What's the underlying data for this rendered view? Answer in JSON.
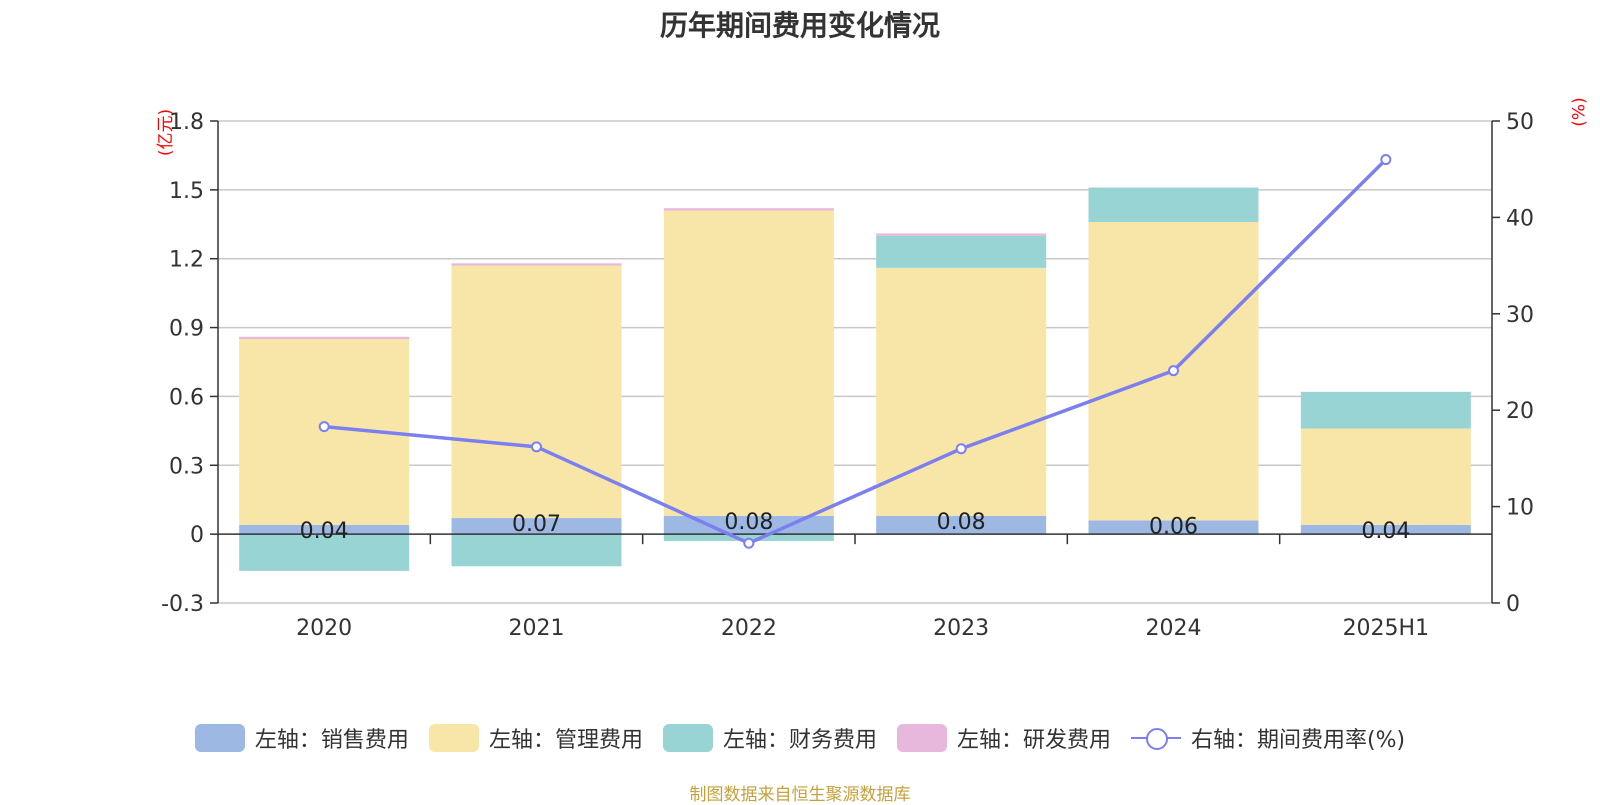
{
  "chart_data": {
    "type": "bar",
    "title": "历年期间费用变化情况",
    "left_unit": "(亿元)",
    "right_unit": "(%)",
    "categories": [
      "2020",
      "2021",
      "2022",
      "2023",
      "2024",
      "2025H1"
    ],
    "left_axis": {
      "ylim": [
        -0.3,
        1.8
      ],
      "ticks": [
        "-0.3",
        "0",
        "0.3",
        "0.6",
        "0.9",
        "1.2",
        "1.5",
        "1.8"
      ]
    },
    "right_axis": {
      "ylim": [
        0,
        50
      ],
      "ticks": [
        "0",
        "10",
        "20",
        "30",
        "40",
        "50"
      ]
    },
    "grid": true,
    "legend_position": "bottom",
    "series": [
      {
        "name": "左轴：销售费用",
        "type": "bar",
        "axis": "left",
        "color": "#9db8e3",
        "values": [
          0.04,
          0.07,
          0.08,
          0.08,
          0.06,
          0.04
        ],
        "labels": [
          "0.04",
          "0.07",
          "0.08",
          "0.08",
          "0.06",
          "0.04"
        ]
      },
      {
        "name": "左轴：管理费用",
        "type": "bar",
        "axis": "left",
        "color": "#f7e6a8",
        "values": [
          0.81,
          1.1,
          1.33,
          1.08,
          1.3,
          0.42
        ]
      },
      {
        "name": "左轴：财务费用",
        "type": "bar",
        "axis": "left",
        "color": "#98d4d4",
        "values": [
          -0.16,
          -0.14,
          -0.03,
          0.14,
          0.15,
          0.16
        ]
      },
      {
        "name": "左轴：研发费用",
        "type": "bar",
        "axis": "left",
        "color": "#e8b8dc",
        "values": [
          0.01,
          0.01,
          0.01,
          0.01,
          0.0,
          0.0
        ]
      },
      {
        "name": "右轴：期间费用率(%)",
        "type": "line",
        "axis": "right",
        "color": "#7b7ff0",
        "values": [
          18.3,
          16.2,
          6.2,
          16.0,
          24.1,
          46.0
        ]
      }
    ]
  },
  "source": "制图数据来自恒生聚源数据库"
}
